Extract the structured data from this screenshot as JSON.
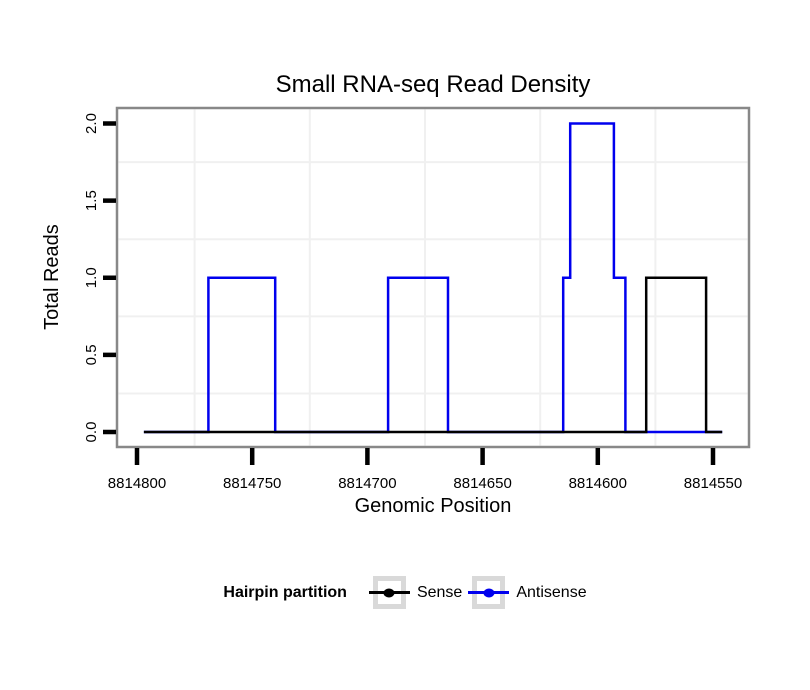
{
  "title": "Small RNA-seq Read Density",
  "chart_data": {
    "type": "line",
    "subtype": "step",
    "title": "Small RNA-seq Read Density",
    "xlabel": "Genomic Position",
    "ylabel": "Total Reads",
    "x_axis_reversed": true,
    "xlim": [
      8814809,
      8814532
    ],
    "ylim": [
      -0.08,
      2.08
    ],
    "x_ticks": [
      8814800,
      8814750,
      8814700,
      8814650,
      8814600,
      8814550
    ],
    "x_tick_labels": [
      "8814800",
      "8814750",
      "8814700",
      "8814650",
      "8814600",
      "8814550"
    ],
    "y_ticks": [
      0.0,
      0.5,
      1.0,
      1.5,
      2.0
    ],
    "y_tick_labels": [
      "0.0",
      "0.5",
      "1.0",
      "1.5",
      "2.0"
    ],
    "grid": "minor-only",
    "x_minor_gridlines": [
      8814775,
      8814725,
      8814675,
      8814625,
      8814575
    ],
    "y_minor_gridlines": [
      0.25,
      0.75,
      1.25,
      1.75
    ],
    "legend_position": "bottom",
    "series": [
      {
        "name": "Antisense",
        "color": "#0000ee",
        "points": [
          [
            8814797,
            0
          ],
          [
            8814769,
            0
          ],
          [
            8814769,
            1
          ],
          [
            8814740,
            1
          ],
          [
            8814740,
            0
          ],
          [
            8814691,
            0
          ],
          [
            8814691,
            1
          ],
          [
            8814665,
            1
          ],
          [
            8814665,
            0
          ],
          [
            8814615,
            0
          ],
          [
            8814615,
            1
          ],
          [
            8814612,
            1
          ],
          [
            8814612,
            2
          ],
          [
            8814593,
            2
          ],
          [
            8814593,
            1
          ],
          [
            8814588,
            1
          ],
          [
            8814588,
            0
          ],
          [
            8814546,
            0
          ]
        ]
      },
      {
        "name": "Sense",
        "color": "#000000",
        "points": [
          [
            8814797,
            0
          ],
          [
            8814579,
            0
          ],
          [
            8814579,
            1
          ],
          [
            8814553,
            1
          ],
          [
            8814553,
            0
          ],
          [
            8814546,
            0
          ]
        ]
      }
    ]
  },
  "legend": {
    "title": "Hairpin partition",
    "items": [
      {
        "label": "Sense",
        "color": "#000000"
      },
      {
        "label": "Antisense",
        "color": "#0000ee"
      }
    ]
  },
  "colors": {
    "background": "#ffffff",
    "panel_border": "#888888",
    "minor_grid": "#f0f0f0",
    "tick": "#000000",
    "text": "#000000",
    "legend_key_border": "#d9d9d9",
    "sense": "#000000",
    "antisense": "#0000ee"
  }
}
